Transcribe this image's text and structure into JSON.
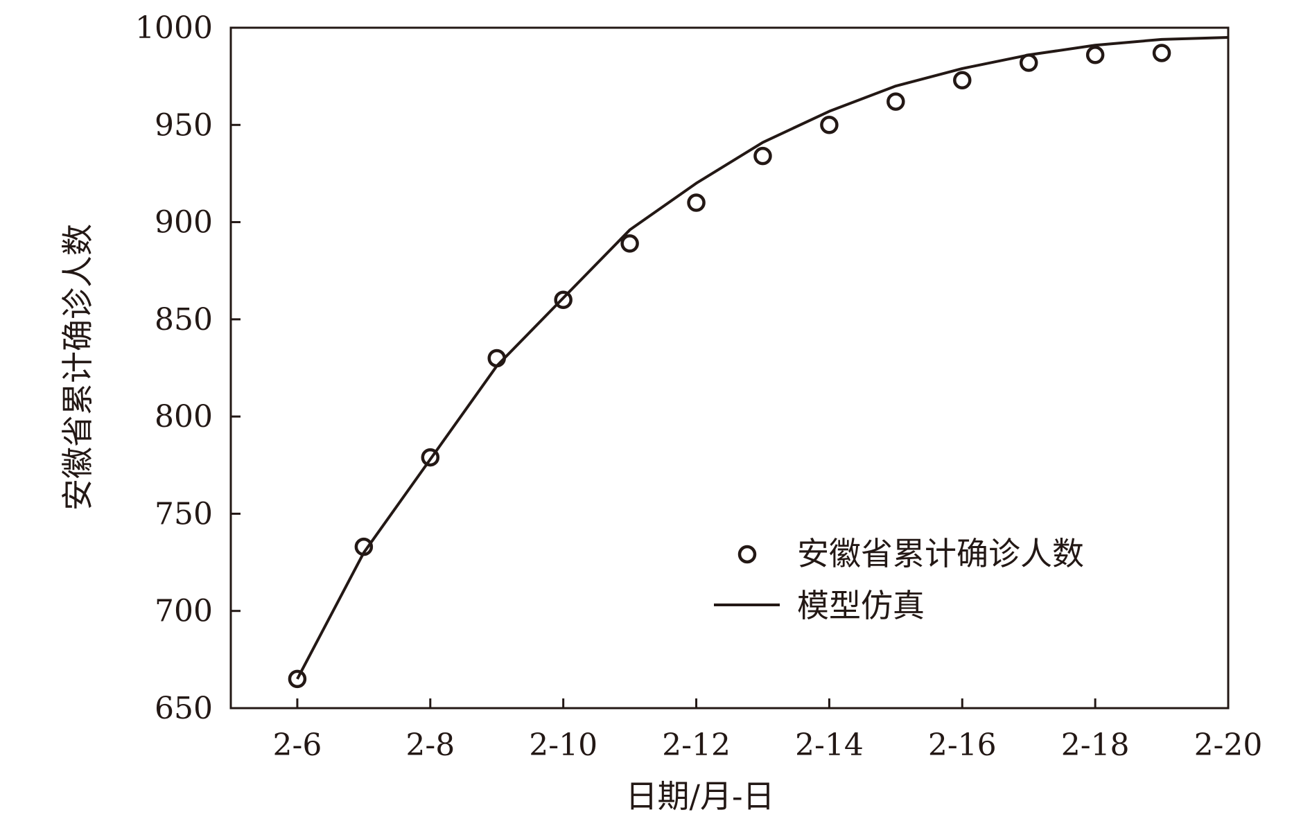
{
  "chart_data": {
    "type": "scatter+line",
    "xlabel": "日期/月-日",
    "ylabel": "安徽省累计确诊人数",
    "x_ticks": [
      "2-6",
      "2-8",
      "2-10",
      "2-12",
      "2-14",
      "2-16",
      "2-18",
      "2-20"
    ],
    "y_ticks": [
      "650",
      "700",
      "750",
      "800",
      "850",
      "900",
      "950",
      "1000"
    ],
    "xlim_day": [
      5,
      20
    ],
    "ylim": [
      650,
      1000
    ],
    "grid": false,
    "legend_position": "lower-right",
    "series": [
      {
        "name": "安徽省累计确诊人数",
        "kind": "scatter",
        "marker": "hollow-circle",
        "color": "#231815",
        "x": [
          "2-6",
          "2-7",
          "2-8",
          "2-9",
          "2-10",
          "2-11",
          "2-12",
          "2-13",
          "2-14",
          "2-15",
          "2-16",
          "2-17",
          "2-18",
          "2-19"
        ],
        "y": [
          665,
          733,
          779,
          830,
          860,
          889,
          910,
          934,
          950,
          962,
          973,
          982,
          986,
          987
        ]
      },
      {
        "name": "模型仿真",
        "kind": "line",
        "color": "#231815",
        "x": [
          "2-6",
          "2-7",
          "2-8",
          "2-9",
          "2-10",
          "2-11",
          "2-12",
          "2-13",
          "2-14",
          "2-15",
          "2-16",
          "2-17",
          "2-18",
          "2-19",
          "2-20"
        ],
        "y": [
          665,
          730,
          778,
          826,
          861,
          896,
          920,
          941,
          957,
          970,
          979,
          986,
          991,
          994,
          995
        ]
      }
    ]
  }
}
